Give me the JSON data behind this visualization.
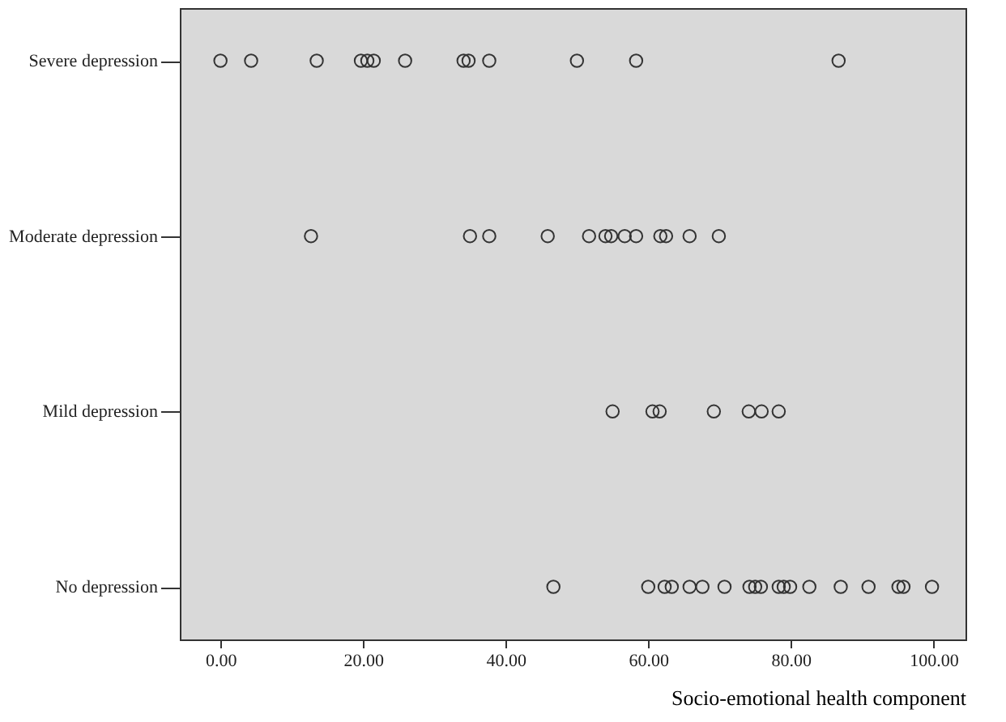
{
  "chart_data": {
    "type": "scatter",
    "orientation": "horizontal",
    "xlabel": "Socio-emotional  health component",
    "categories": [
      "Severe depression",
      "Moderate depression",
      "Mild depression",
      "No depression"
    ],
    "series": [
      {
        "color": "#333333",
        "values": [
          0,
          12.7,
          55,
          46.7
        ]
      },
      {
        "color": "#333333",
        "values": [
          4.3,
          35,
          60.6,
          60
        ]
      },
      {
        "color": "#333333",
        "values": [
          13.5,
          37.7,
          61.6,
          62.3
        ]
      },
      {
        "color": "#333333",
        "values": [
          19.7,
          45.9,
          69.2,
          63.3
        ]
      },
      {
        "color": "#333333",
        "values": [
          20.6,
          51.7,
          74.1,
          65.8
        ]
      },
      {
        "color": "#333333",
        "values": [
          21.5,
          54,
          75.9,
          67.6
        ]
      },
      {
        "color": "#333333",
        "values": [
          25.9,
          54.8,
          78.3,
          70.7
        ]
      },
      {
        "color": "#333333",
        "values": [
          34.1,
          56.7,
          null,
          74.2
        ]
      },
      {
        "color": "#333333",
        "values": [
          34.8,
          58.3,
          null,
          75
        ]
      },
      {
        "color": "#333333",
        "values": [
          37.7,
          61.7,
          null,
          75.8
        ]
      },
      {
        "color": "#333333",
        "values": [
          50,
          62.5,
          null,
          78.3
        ]
      },
      {
        "color": "#333333",
        "values": [
          58.3,
          65.8,
          null,
          79
        ]
      },
      {
        "color": "#333333",
        "values": [
          86.7,
          69.9,
          null,
          79.9
        ]
      },
      {
        "color": "#333333",
        "values": [
          null,
          null,
          null,
          82.6
        ]
      },
      {
        "color": "#333333",
        "values": [
          null,
          null,
          null,
          87
        ]
      },
      {
        "color": "#333333",
        "values": [
          null,
          null,
          null,
          90.9
        ]
      },
      {
        "color": "#333333",
        "values": [
          null,
          null,
          null,
          95.1
        ]
      },
      {
        "color": "#333333",
        "values": [
          null,
          null,
          null,
          95.8
        ]
      },
      {
        "color": "#333333",
        "values": [
          null,
          null,
          null,
          99.8
        ]
      }
    ],
    "marker": "circle",
    "grid": false,
    "xlim": [
      -5.7,
      104.5
    ],
    "xticks": [
      {
        "value": 0,
        "label": "0.00"
      },
      {
        "value": 20,
        "label": "20.00"
      },
      {
        "value": 40,
        "label": "40.00"
      },
      {
        "value": 60,
        "label": "60.00"
      },
      {
        "value": 80,
        "label": "80.00"
      },
      {
        "value": 100,
        "label": "100.00"
      }
    ]
  }
}
